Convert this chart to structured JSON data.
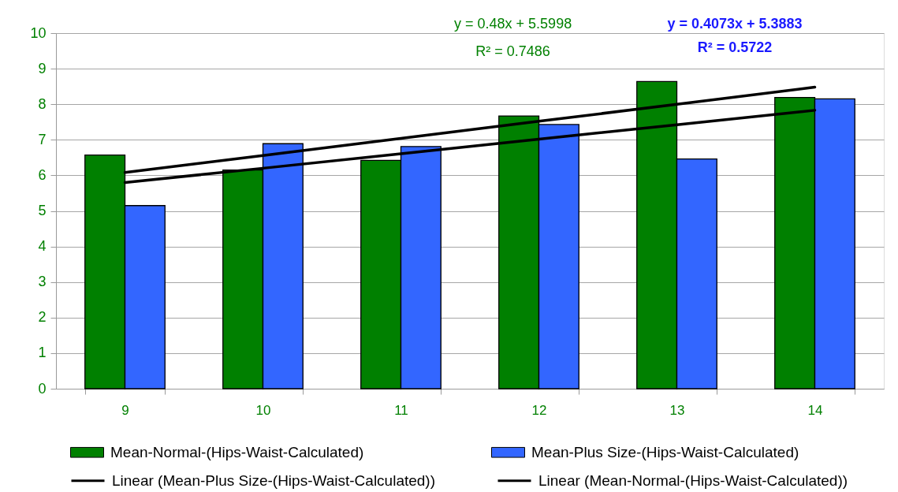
{
  "chart_data": {
    "type": "bar",
    "categories": [
      "9",
      "10",
      "11",
      "12",
      "13",
      "14"
    ],
    "series": [
      {
        "name": "Mean-Normal-(Hips-Waist-Calculated)",
        "color": "#008000",
        "values": [
          6.57,
          6.15,
          6.42,
          7.67,
          8.64,
          8.19
        ]
      },
      {
        "name": "Mean-Plus Size-(Hips-Waist-Calculated)",
        "color": "#3366ff",
        "values": [
          5.15,
          6.89,
          6.81,
          7.43,
          6.46,
          8.15
        ]
      },
      {
        "name": "Linear (Mean-Plus Size-(Hips-Waist-Calculated))",
        "type": "line",
        "color": "#000000",
        "values": [
          5.8,
          6.2,
          6.61,
          7.02,
          7.42,
          7.83
        ]
      },
      {
        "name": "Linear (Mean-Normal-(Hips-Waist-Calculated))",
        "type": "line",
        "color": "#000000",
        "values": [
          6.08,
          6.56,
          7.04,
          7.52,
          8.0,
          8.48
        ]
      }
    ],
    "ylim": [
      0,
      10
    ],
    "yticks": [
      0,
      1,
      2,
      3,
      4,
      5,
      6,
      7,
      8,
      9,
      10
    ],
    "grid": "y",
    "legend": "bottom",
    "line_style": "solid",
    "annotations": [
      "y = 0.48x + 5.5998",
      "R² = 0.7486",
      "y = 0.4073x + 5.3883",
      "R² = 0.5722"
    ]
  }
}
